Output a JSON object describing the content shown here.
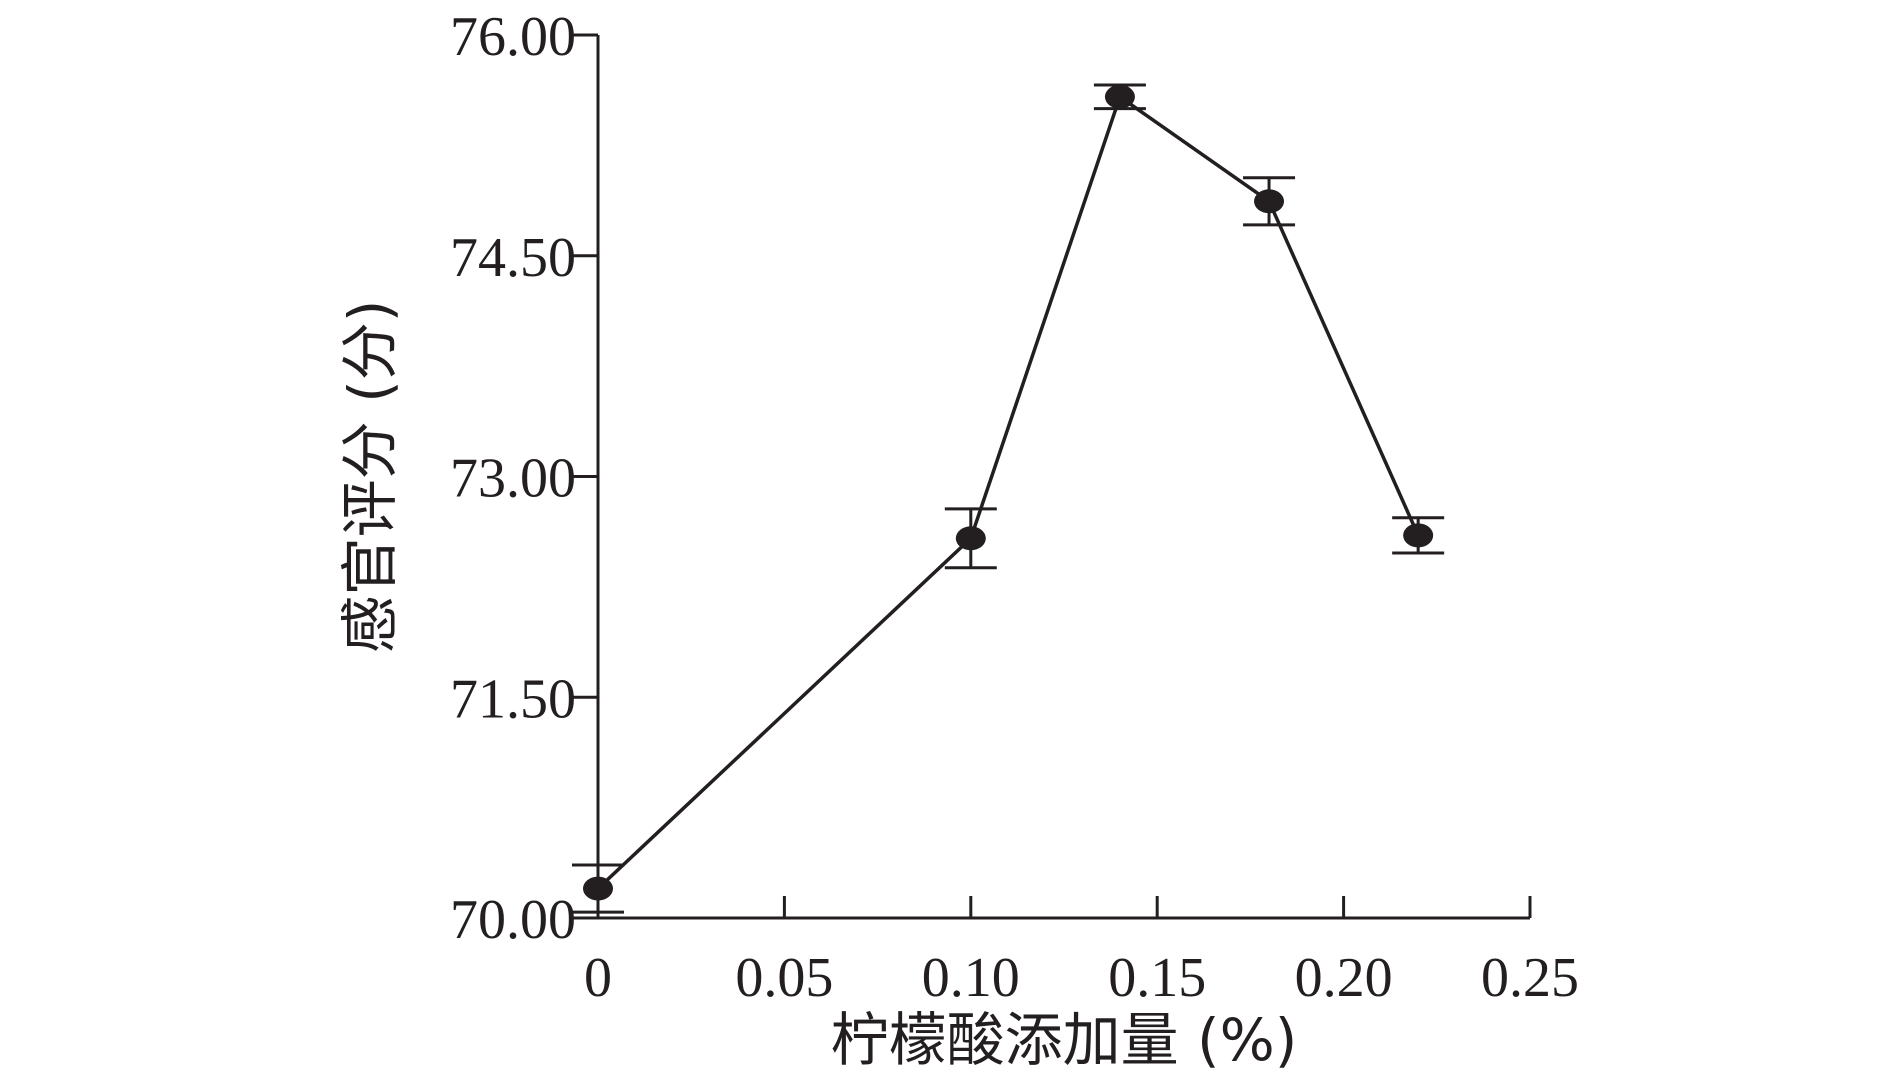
{
  "chart_data": {
    "type": "line",
    "title": "",
    "xlabel": "柠檬酸添加量 (%)",
    "ylabel": "感官评分 (分)",
    "xlim": [
      0,
      0.25
    ],
    "ylim": [
      70.0,
      76.0
    ],
    "x_ticks": [
      0,
      0.05,
      0.1,
      0.15,
      0.2,
      0.25
    ],
    "x_tick_labels": [
      "0",
      "0.05",
      "0.10",
      "0.15",
      "0.20",
      "0.25"
    ],
    "y_ticks": [
      70.0,
      71.5,
      73.0,
      74.5,
      76.0
    ],
    "y_tick_labels": [
      "70.00",
      "71.50",
      "73.00",
      "74.50",
      "76.00"
    ],
    "grid": false,
    "series": [
      {
        "x": [
          0,
          0.1,
          0.14,
          0.18,
          0.22
        ],
        "values": [
          70.2,
          72.58,
          75.58,
          74.87,
          72.6
        ],
        "errors": [
          0.16,
          0.2,
          0.08,
          0.16,
          0.12
        ]
      }
    ]
  }
}
